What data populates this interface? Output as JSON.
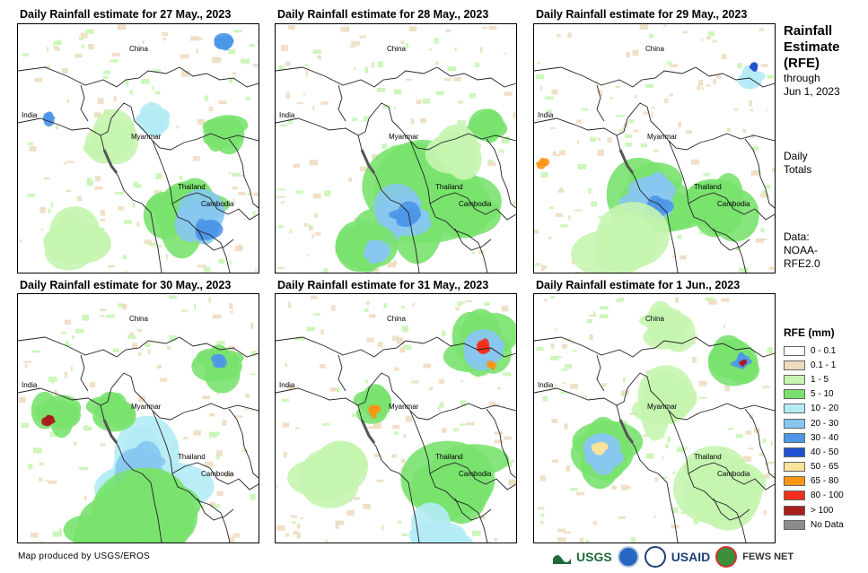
{
  "panels": [
    {
      "title": "Daily Rainfall estimate for 27 May., 2023"
    },
    {
      "title": "Daily Rainfall estimate for 28 May., 2023"
    },
    {
      "title": "Daily Rainfall estimate for 29 May., 2023"
    },
    {
      "title": "Daily Rainfall estimate for 30 May., 2023"
    },
    {
      "title": "Daily Rainfall estimate for 31 May., 2023"
    },
    {
      "title": "Daily Rainfall estimate for 1 Jun., 2023"
    }
  ],
  "map_labels": {
    "china": "China",
    "india": "India",
    "myanmar": "Myanmar",
    "thailand": "Thailand",
    "cambodia": "Cambodia"
  },
  "sidebar": {
    "title_line1": "Rainfall",
    "title_line2": "Estimate",
    "title_line3": "(RFE)",
    "through": "through",
    "through_date": "Jun 1, 2023",
    "daily": "Daily",
    "totals": "Totals",
    "data_label": "Data:",
    "data_src1": "NOAA-",
    "data_src2": "RFE2.0"
  },
  "legend": {
    "title": "RFE (mm)",
    "items": [
      {
        "label": "0 - 0.1",
        "color": "#ffffff"
      },
      {
        "label": "0.1 - 1",
        "color": "#ecdbbd"
      },
      {
        "label": "1 - 5",
        "color": "#c5f5b0"
      },
      {
        "label": "5 - 10",
        "color": "#79e26e"
      },
      {
        "label": "10 - 20",
        "color": "#b4ebf5"
      },
      {
        "label": "20 - 30",
        "color": "#88c6f0"
      },
      {
        "label": "30 - 40",
        "color": "#4e97e8"
      },
      {
        "label": "40 - 50",
        "color": "#1f52d0"
      },
      {
        "label": "50 - 65",
        "color": "#fae39a"
      },
      {
        "label": "65 - 80",
        "color": "#fb9514"
      },
      {
        "label": "80 - 100",
        "color": "#f0301c"
      },
      {
        "label": "> 100",
        "color": "#a91d1d"
      },
      {
        "label": "No Data",
        "color": "#8c8c8c"
      }
    ]
  },
  "footer": {
    "credit": "Map produced by USGS/EROS",
    "usgs": "USGS",
    "usaid": "USAID",
    "fewsnet": "FEWS NET"
  }
}
